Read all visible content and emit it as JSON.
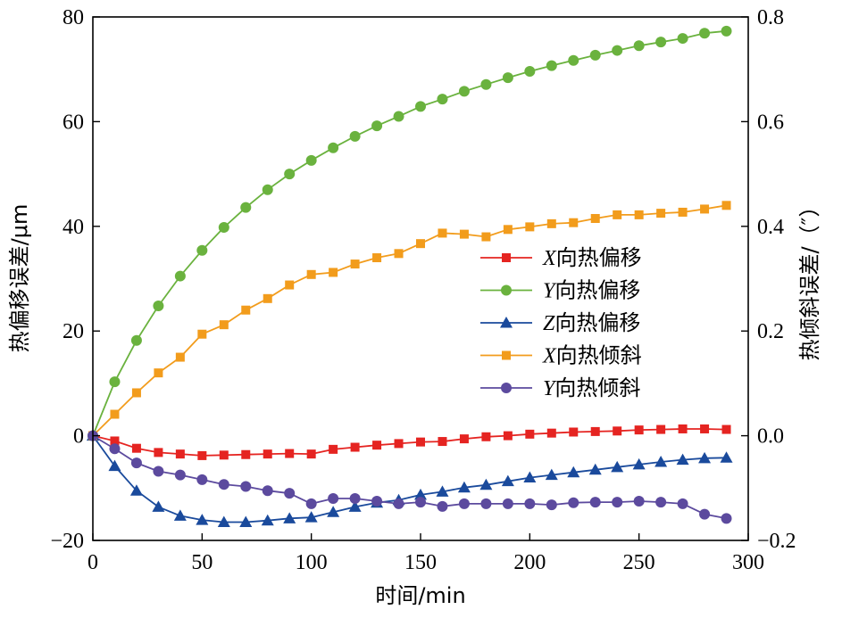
{
  "chart_data": {
    "type": "line",
    "xlabel": "时间/min",
    "ylabel_left": "热偏移误差/μm",
    "ylabel_right": "热倾斜误差/（″）",
    "x_ticks": [
      "0",
      "50",
      "100",
      "150",
      "200",
      "250",
      "300"
    ],
    "y_left_ticks": [
      "−20",
      "0",
      "20",
      "40",
      "60",
      "80"
    ],
    "y_right_ticks": [
      "−0.2",
      "0.0",
      "0.2",
      "0.4",
      "0.6",
      "0.8"
    ],
    "xlim": [
      0,
      300
    ],
    "ylim_left": [
      -20,
      80
    ],
    "ylim_right": [
      -0.2,
      0.8
    ],
    "legend_position": "center-right",
    "series": [
      {
        "name": "X向热偏移",
        "name_prefix": "X",
        "name_suffix": "向热偏移",
        "axis": "left",
        "color": "#e52421",
        "marker": "square",
        "x": [
          0,
          10,
          20,
          30,
          40,
          50,
          60,
          70,
          80,
          90,
          100,
          110,
          120,
          130,
          140,
          150,
          160,
          170,
          180,
          190,
          200,
          210,
          220,
          230,
          240,
          250,
          260,
          270,
          280,
          290
        ],
        "values": [
          0,
          -1,
          -2.4,
          -3.2,
          -3.5,
          -3.8,
          -3.7,
          -3.6,
          -3.5,
          -3.4,
          -3.5,
          -2.6,
          -2.2,
          -1.8,
          -1.5,
          -1.2,
          -1.1,
          -0.6,
          -0.2,
          0,
          0.3,
          0.5,
          0.7,
          0.8,
          0.9,
          1.1,
          1.2,
          1.3,
          1.3,
          1.2
        ]
      },
      {
        "name": "Y向热偏移",
        "name_prefix": "Y",
        "name_suffix": "向热偏移",
        "axis": "left",
        "color": "#6ab23e",
        "marker": "circle",
        "x": [
          0,
          10,
          20,
          30,
          40,
          50,
          60,
          70,
          80,
          90,
          100,
          110,
          120,
          130,
          140,
          150,
          160,
          170,
          180,
          190,
          200,
          210,
          220,
          230,
          240,
          250,
          260,
          270,
          280,
          290
        ],
        "values": [
          0,
          10.3,
          18.2,
          24.8,
          30.5,
          35.4,
          39.8,
          43.6,
          47,
          50,
          52.6,
          55,
          57.2,
          59.2,
          61,
          62.9,
          64.3,
          65.8,
          67.1,
          68.4,
          69.6,
          70.7,
          71.7,
          72.7,
          73.6,
          74.5,
          75.2,
          75.9,
          76.9,
          77.3
        ]
      },
      {
        "name": "Z向热偏移",
        "name_prefix": "Z",
        "name_suffix": "向热偏移",
        "axis": "left",
        "color": "#1a4a9c",
        "marker": "triangle",
        "x": [
          0,
          10,
          20,
          30,
          40,
          50,
          60,
          70,
          80,
          90,
          100,
          110,
          120,
          130,
          140,
          150,
          160,
          170,
          180,
          190,
          200,
          210,
          220,
          230,
          240,
          250,
          260,
          270,
          280,
          290
        ],
        "values": [
          0,
          -5.8,
          -10.5,
          -13.6,
          -15.3,
          -16.1,
          -16.5,
          -16.5,
          -16.2,
          -15.8,
          -15.6,
          -14.6,
          -13.6,
          -12.8,
          -12.3,
          -11.3,
          -10.7,
          -9.9,
          -9.4,
          -8.7,
          -8,
          -7.5,
          -7,
          -6.5,
          -6,
          -5.5,
          -5,
          -4.6,
          -4.3,
          -4.2
        ]
      },
      {
        "name": "X向热倾斜",
        "name_prefix": "X",
        "name_suffix": "向热倾斜",
        "axis": "right",
        "color": "#f29c1c",
        "marker": "square",
        "x": [
          0,
          10,
          20,
          30,
          40,
          50,
          60,
          70,
          80,
          90,
          100,
          110,
          120,
          130,
          140,
          150,
          160,
          170,
          180,
          190,
          200,
          210,
          220,
          230,
          240,
          250,
          260,
          270,
          280,
          290
        ],
        "values": [
          0,
          0.041,
          0.082,
          0.12,
          0.15,
          0.194,
          0.212,
          0.24,
          0.262,
          0.288,
          0.308,
          0.312,
          0.328,
          0.34,
          0.348,
          0.367,
          0.387,
          0.385,
          0.38,
          0.394,
          0.399,
          0.405,
          0.407,
          0.415,
          0.422,
          0.422,
          0.425,
          0.427,
          0.433,
          0.44
        ]
      },
      {
        "name": "Y向热倾斜",
        "name_prefix": "Y",
        "name_suffix": "向热倾斜",
        "axis": "right",
        "color": "#5c4a9e",
        "marker": "circle",
        "x": [
          0,
          10,
          20,
          30,
          40,
          50,
          60,
          70,
          80,
          90,
          100,
          110,
          120,
          130,
          140,
          150,
          160,
          170,
          180,
          190,
          200,
          210,
          220,
          230,
          240,
          250,
          260,
          270,
          280,
          290
        ],
        "values": [
          0,
          -0.025,
          -0.052,
          -0.068,
          -0.075,
          -0.084,
          -0.093,
          -0.097,
          -0.105,
          -0.11,
          -0.13,
          -0.12,
          -0.12,
          -0.125,
          -0.13,
          -0.127,
          -0.135,
          -0.13,
          -0.13,
          -0.13,
          -0.13,
          -0.132,
          -0.128,
          -0.127,
          -0.127,
          -0.125,
          -0.127,
          -0.13,
          -0.15,
          -0.158
        ]
      }
    ]
  }
}
